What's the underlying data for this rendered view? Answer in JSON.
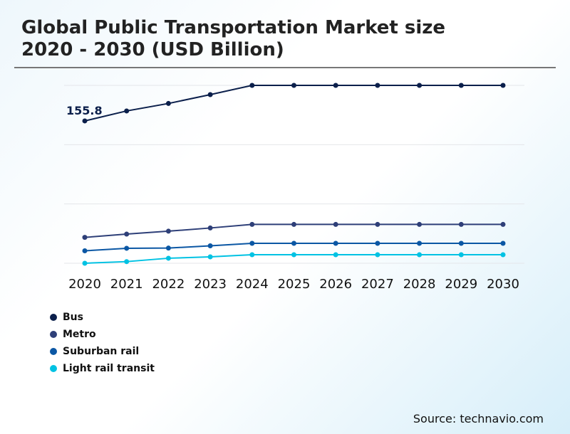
{
  "title_line1": "Global Public Transportation Market size",
  "title_line2": "2020 - 2030 (USD Billion)",
  "source": "Source: technavio.com",
  "chart_data": {
    "type": "line",
    "title": "Global Public Transportation Market size 2020 - 2030 (USD Billion)",
    "categories": [
      "2020",
      "2021",
      "2022",
      "2023",
      "2024",
      "2025",
      "2026",
      "2027",
      "2028",
      "2029",
      "2030"
    ],
    "ylim": [
      0,
      194.7
    ],
    "grid": true,
    "legend": "bottom-left",
    "annotations": [
      {
        "series": "Bus",
        "x": "2020",
        "label": "155.8"
      }
    ],
    "series": [
      {
        "name": "Bus",
        "color": "#0b1f4b",
        "values": [
          155.8,
          166.7,
          174.9,
          184.6,
          194.7,
          194.7,
          194.7,
          194.7,
          194.7,
          194.7,
          194.7
        ]
      },
      {
        "name": "Metro",
        "color": "#2e3f78",
        "values": [
          28.3,
          31.9,
          35.1,
          38.6,
          42.5,
          42.5,
          42.5,
          42.5,
          42.5,
          42.5,
          42.5
        ]
      },
      {
        "name": "Suburban rail",
        "color": "#0b57a4",
        "values": [
          13.6,
          16.4,
          16.6,
          19.1,
          21.8,
          21.8,
          21.8,
          21.8,
          21.8,
          21.8,
          21.8
        ]
      },
      {
        "name": "Light rail transit",
        "color": "#00c2e3",
        "values": [
          0,
          1.8,
          5.5,
          7.0,
          9.3,
          9.3,
          9.3,
          9.3,
          9.3,
          9.3,
          9.3
        ]
      }
    ]
  }
}
